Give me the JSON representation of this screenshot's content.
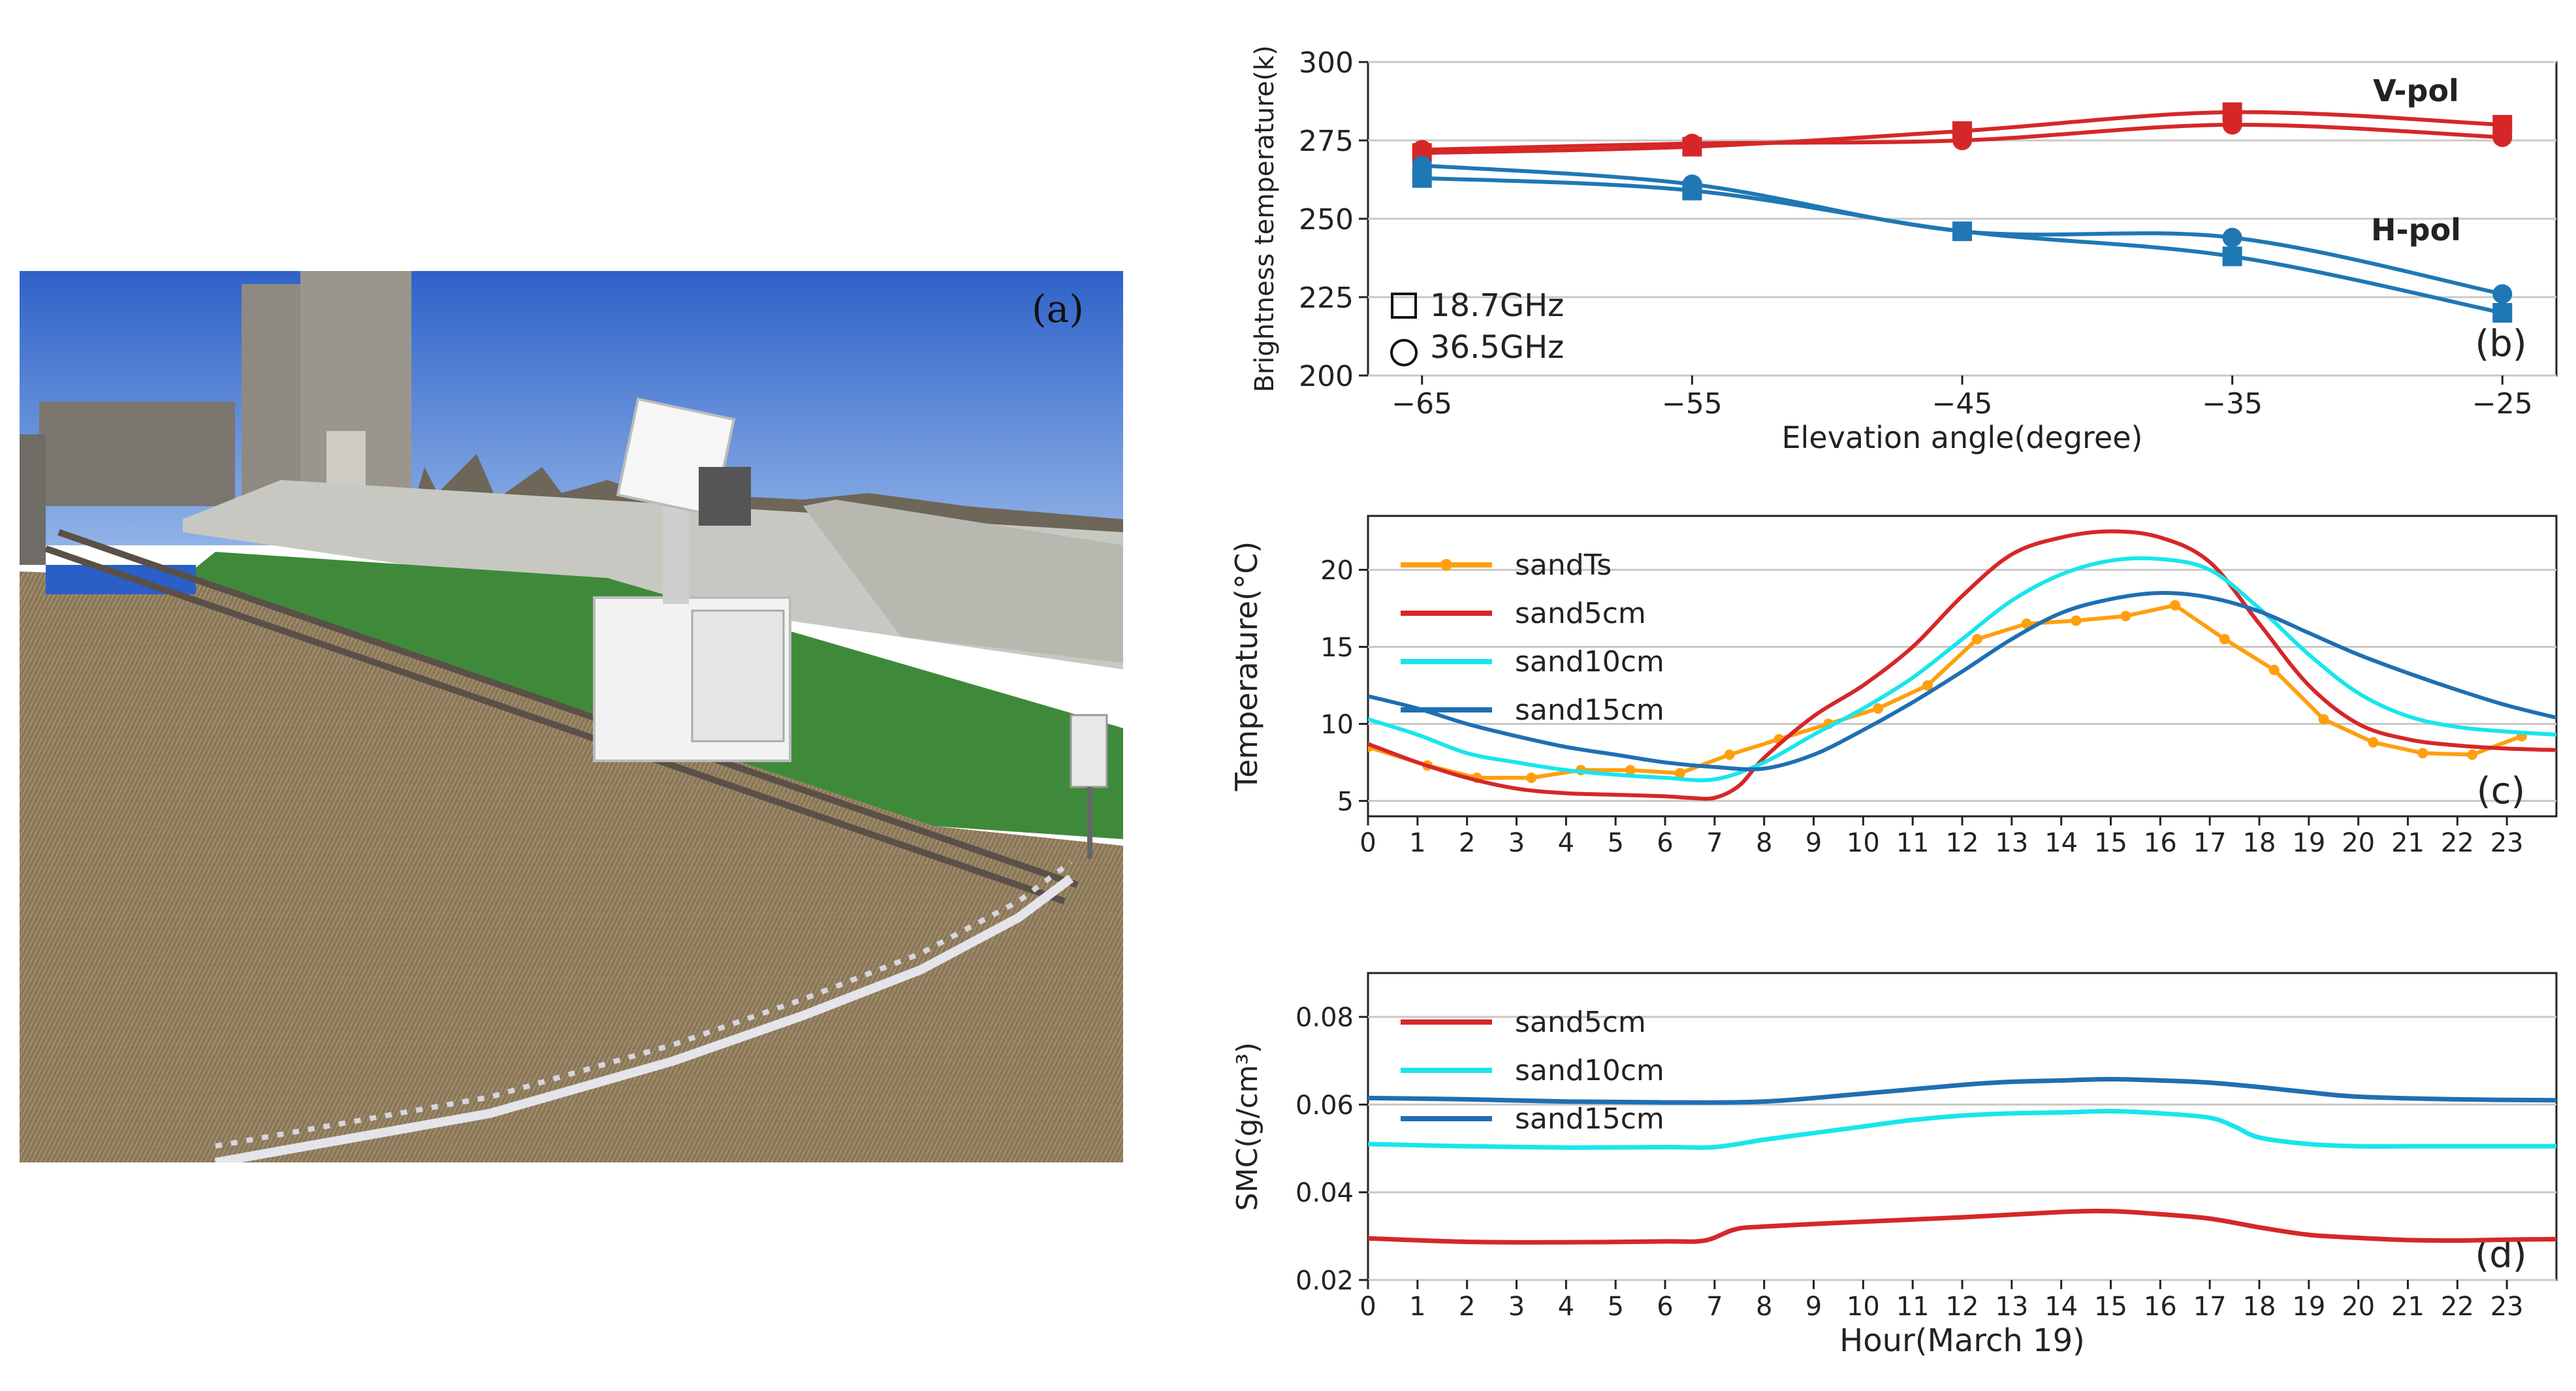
{
  "photo": {
    "label": "(a)",
    "colors": {
      "sky": "#3f74d6",
      "grass": "#3f8a3a",
      "dry_field": "#8c7a5c",
      "embankment": "#c9c9c4",
      "device": "#f2f2f2"
    }
  },
  "chart_data": [
    {
      "panel": "(b)",
      "type": "line",
      "xlabel": "Elevation angle(degree)",
      "ylabel": "Brightness temperature(k)",
      "xlim": [
        -67,
        -23
      ],
      "ylim": [
        200,
        300
      ],
      "xticks": [
        -65,
        -55,
        -45,
        -35,
        -25
      ],
      "yticks": [
        200,
        225,
        250,
        275,
        300
      ],
      "grid": "horizontal",
      "legend": {
        "position": "bottom-left",
        "entries": [
          {
            "marker": "square",
            "label": "18.7GHz"
          },
          {
            "marker": "circle",
            "label": "36.5GHz"
          }
        ]
      },
      "annotations": [
        {
          "text": "V-pol",
          "color": "#d62728"
        },
        {
          "text": "H-pol",
          "color": "#1f77b4"
        }
      ],
      "x": [
        -65,
        -55,
        -45,
        -35,
        -25
      ],
      "series": [
        {
          "pol": "V",
          "freq": "18.7GHz",
          "marker": "square",
          "color": "#d62728",
          "values": [
            271,
            273,
            278,
            284,
            280
          ]
        },
        {
          "pol": "V",
          "freq": "36.5GHz",
          "marker": "circle",
          "color": "#d62728",
          "values": [
            272,
            274,
            275,
            280,
            276
          ]
        },
        {
          "pol": "H",
          "freq": "18.7GHz",
          "marker": "square",
          "color": "#1f77b4",
          "values": [
            263,
            259,
            246,
            238,
            220
          ]
        },
        {
          "pol": "H",
          "freq": "36.5GHz",
          "marker": "circle",
          "color": "#1f77b4",
          "values": [
            267,
            261,
            246,
            244,
            226
          ]
        }
      ]
    },
    {
      "panel": "(c)",
      "type": "line",
      "xlabel": "",
      "ylabel": "Temperature(°C)",
      "xlim": [
        0,
        24
      ],
      "ylim": [
        4,
        23.5
      ],
      "xticks": [
        0,
        1,
        2,
        3,
        4,
        5,
        6,
        7,
        8,
        9,
        10,
        11,
        12,
        13,
        14,
        15,
        16,
        17,
        18,
        19,
        20,
        21,
        22,
        23
      ],
      "yticks": [
        5,
        10,
        15,
        20
      ],
      "grid": "horizontal",
      "legend": {
        "position": "top-left"
      },
      "series": [
        {
          "name": "sandTs",
          "color": "#ff9f0e",
          "marker": "circle",
          "x": [
            0,
            1.2,
            2.2,
            3.3,
            4.3,
            5.3,
            6.3,
            7.3,
            8.3,
            9.3,
            10.3,
            11.3,
            12.3,
            13.3,
            14.3,
            15.3,
            16.3,
            17.3,
            18.3,
            19.3,
            20.3,
            21.3,
            22.3,
            23.3
          ],
          "values": [
            8.5,
            7.3,
            6.5,
            6.5,
            7,
            7,
            6.8,
            8,
            9,
            10,
            11,
            12.5,
            15.5,
            16.5,
            16.7,
            17,
            17.7,
            15.5,
            13.5,
            10.3,
            8.8,
            8.1,
            8,
            9.2
          ]
        },
        {
          "name": "sand5cm",
          "color": "#d62728",
          "x": [
            0,
            1,
            2,
            3,
            4,
            5,
            6,
            6.5,
            7,
            7.5,
            8,
            9,
            10,
            11,
            12,
            13,
            14,
            15,
            16,
            17,
            18,
            19,
            20,
            21,
            22,
            23,
            24
          ],
          "values": [
            8.7,
            7.5,
            6.5,
            5.8,
            5.5,
            5.4,
            5.3,
            5.2,
            5.2,
            6,
            7.8,
            10.5,
            12.5,
            15,
            18.3,
            21,
            22.1,
            22.5,
            22.1,
            20.5,
            16.5,
            12.5,
            10,
            9,
            8.6,
            8.4,
            8.3
          ]
        },
        {
          "name": "sand10cm",
          "color": "#17e6ec",
          "x": [
            0,
            1,
            2,
            3,
            4,
            5,
            6,
            7,
            8,
            9,
            10,
            11,
            12,
            13,
            14,
            15,
            16,
            17,
            18,
            19,
            20,
            21,
            22,
            23,
            24
          ],
          "values": [
            10.3,
            9.3,
            8.1,
            7.5,
            7,
            6.7,
            6.5,
            6.4,
            7.5,
            9.3,
            11,
            13,
            15.5,
            18,
            19.7,
            20.6,
            20.7,
            20,
            17.5,
            14.5,
            12,
            10.5,
            9.8,
            9.5,
            9.3
          ]
        },
        {
          "name": "sand15cm",
          "color": "#1f6fb2",
          "x": [
            0,
            1,
            2,
            3,
            4,
            5,
            6,
            7,
            8,
            9,
            10,
            11,
            12,
            13,
            14,
            15,
            16,
            17,
            18,
            19,
            20,
            21,
            22,
            23,
            24
          ],
          "values": [
            11.8,
            11,
            10,
            9.2,
            8.5,
            8,
            7.5,
            7.2,
            7.1,
            8,
            9.6,
            11.4,
            13.4,
            15.5,
            17.2,
            18.1,
            18.5,
            18.2,
            17.3,
            15.9,
            14.5,
            13.3,
            12.2,
            11.2,
            10.4
          ]
        }
      ]
    },
    {
      "panel": "(d)",
      "type": "line",
      "xlabel": "Hour(March 19)",
      "ylabel": "SMC(g/cm³)",
      "xlim": [
        0,
        24
      ],
      "ylim": [
        0.02,
        0.09
      ],
      "xticks": [
        0,
        1,
        2,
        3,
        4,
        5,
        6,
        7,
        8,
        9,
        10,
        11,
        12,
        13,
        14,
        15,
        16,
        17,
        18,
        19,
        20,
        21,
        22,
        23
      ],
      "yticks": [
        0.02,
        0.04,
        0.06,
        0.08
      ],
      "ytick_labels": [
        "0.02",
        "0.04",
        "0.06",
        "0.08"
      ],
      "grid": "horizontal",
      "legend": {
        "position": "top-left"
      },
      "series": [
        {
          "name": "sand5cm",
          "color": "#d62728",
          "x": [
            0,
            2,
            4,
            6,
            6.8,
            7.4,
            8,
            10,
            12,
            14,
            15,
            16,
            17,
            18,
            19,
            20,
            21,
            22,
            23,
            24
          ],
          "values": [
            0.0295,
            0.0287,
            0.0286,
            0.0288,
            0.029,
            0.0315,
            0.0322,
            0.0333,
            0.0343,
            0.0355,
            0.0357,
            0.035,
            0.034,
            0.032,
            0.0303,
            0.0296,
            0.0291,
            0.029,
            0.0292,
            0.0293
          ]
        },
        {
          "name": "sand10cm",
          "color": "#17e6ec",
          "x": [
            0,
            2,
            4,
            6,
            7,
            8,
            9,
            10,
            11,
            12,
            13,
            14,
            15,
            16,
            17,
            17.5,
            18,
            19,
            20,
            21,
            22,
            23,
            24
          ],
          "values": [
            0.051,
            0.0505,
            0.0502,
            0.0503,
            0.0503,
            0.052,
            0.0535,
            0.055,
            0.0565,
            0.0575,
            0.058,
            0.0582,
            0.0585,
            0.058,
            0.057,
            0.055,
            0.0525,
            0.051,
            0.0505,
            0.0505,
            0.0505,
            0.0505,
            0.0505
          ]
        },
        {
          "name": "sand15cm",
          "color": "#1f6fb2",
          "x": [
            0,
            2,
            4,
            6,
            8,
            10,
            12,
            13,
            14,
            15,
            16,
            17,
            18,
            19,
            20,
            22,
            24
          ],
          "values": [
            0.0615,
            0.0612,
            0.0607,
            0.0605,
            0.0607,
            0.0625,
            0.0645,
            0.0652,
            0.0655,
            0.0658,
            0.0655,
            0.065,
            0.064,
            0.0628,
            0.0618,
            0.0612,
            0.061
          ]
        }
      ]
    }
  ]
}
